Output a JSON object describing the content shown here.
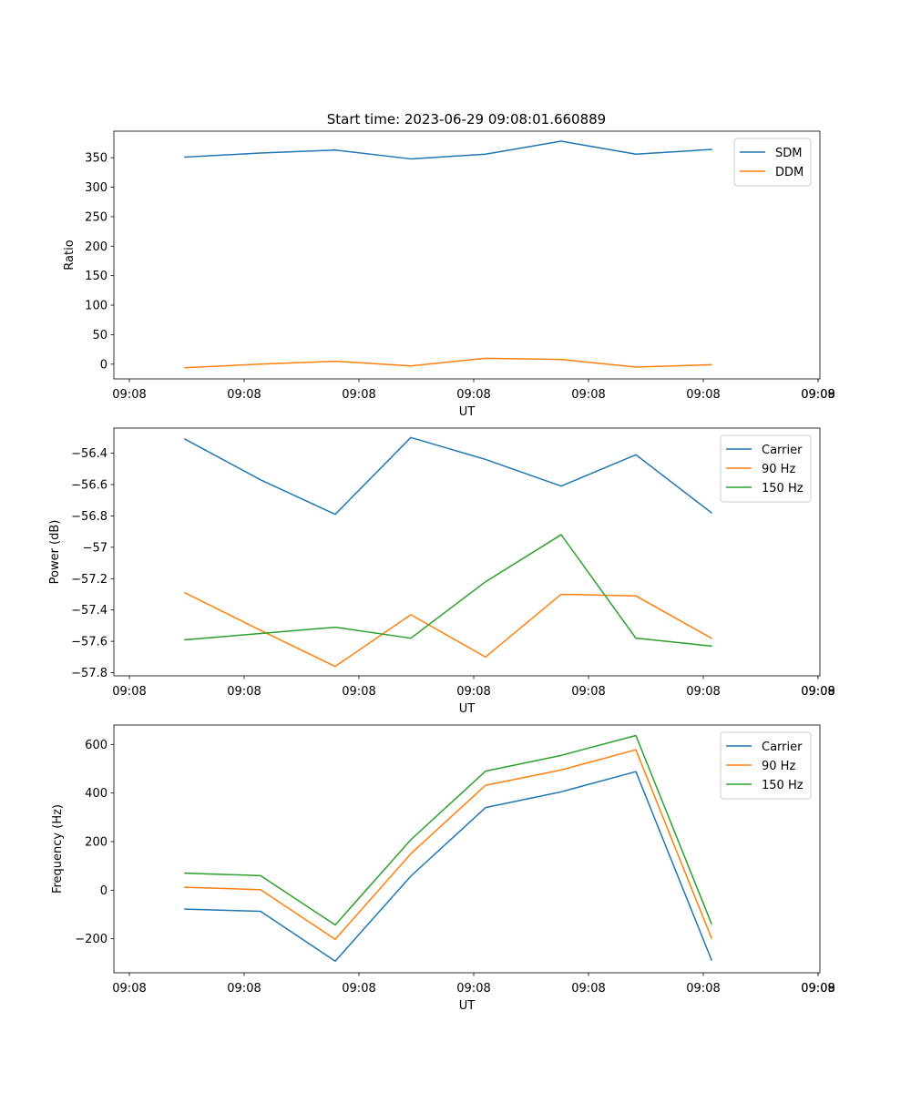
{
  "figure_title": "Start time: 2023-06-29 09:08:01.660889",
  "colors": {
    "c0": "#1f77b4",
    "c1": "#ff7f0e",
    "c2": "#2ca02c"
  },
  "chart_data": [
    {
      "type": "line",
      "title": "Start time: 2023-06-29 09:08:01.660889",
      "xlabel": "UT",
      "ylabel": "Ratio",
      "x_tick_labels": [
        "09:08",
        "09:08",
        "09:08",
        "09:08",
        "09:08",
        "09:08",
        "09:08"
      ],
      "y_ticks": [
        0,
        50,
        100,
        150,
        200,
        250,
        300,
        350
      ],
      "ylim": [
        -25,
        395
      ],
      "legend_position": "top-right",
      "series": [
        {
          "name": "SDM",
          "color": "#1f77b4",
          "values": [
            351,
            358,
            363,
            348,
            356,
            378,
            356,
            364
          ]
        },
        {
          "name": "DDM",
          "color": "#ff7f0e",
          "values": [
            -6,
            0,
            5,
            -3,
            10,
            8,
            -5,
            -1
          ]
        }
      ]
    },
    {
      "type": "line",
      "title": "",
      "xlabel": "UT",
      "ylabel": "Power (dB)",
      "x_tick_labels": [
        "09:08",
        "09:08",
        "09:08",
        "09:08",
        "09:08",
        "09:08",
        "09:08"
      ],
      "y_ticks": [
        -57.8,
        -57.6,
        -57.4,
        -57.2,
        -57.0,
        -56.8,
        -56.6,
        -56.4
      ],
      "ylim": [
        -57.82,
        -56.24
      ],
      "legend_position": "top-right",
      "series": [
        {
          "name": "Carrier",
          "color": "#1f77b4",
          "values": [
            -56.31,
            -56.57,
            -56.79,
            -56.3,
            -56.44,
            -56.61,
            -56.41,
            -56.78
          ]
        },
        {
          "name": "90 Hz",
          "color": "#ff7f0e",
          "values": [
            -57.29,
            -57.53,
            -57.76,
            -57.43,
            -57.7,
            -57.3,
            -57.31,
            -57.58
          ]
        },
        {
          "name": "150 Hz",
          "color": "#2ca02c",
          "values": [
            -57.59,
            -57.55,
            -57.51,
            -57.58,
            -57.22,
            -56.92,
            -57.58,
            -57.63
          ]
        }
      ]
    },
    {
      "type": "line",
      "title": "",
      "xlabel": "UT",
      "ylabel": "Frequency (Hz)",
      "x_tick_labels": [
        "09:08",
        "09:08",
        "09:08",
        "09:08",
        "09:08",
        "09:08",
        "09:08"
      ],
      "y_ticks": [
        -200,
        0,
        200,
        400,
        600
      ],
      "ylim": [
        -340,
        680
      ],
      "legend_position": "top-right",
      "series": [
        {
          "name": "Carrier",
          "color": "#1f77b4",
          "values": [
            -78,
            -87,
            -292,
            58,
            340,
            405,
            488,
            -287
          ]
        },
        {
          "name": "90 Hz",
          "color": "#ff7f0e",
          "values": [
            12,
            2,
            -202,
            150,
            432,
            495,
            578,
            -197
          ]
        },
        {
          "name": "150 Hz",
          "color": "#2ca02c",
          "values": [
            70,
            60,
            -143,
            208,
            490,
            555,
            637,
            -138
          ]
        }
      ]
    }
  ]
}
